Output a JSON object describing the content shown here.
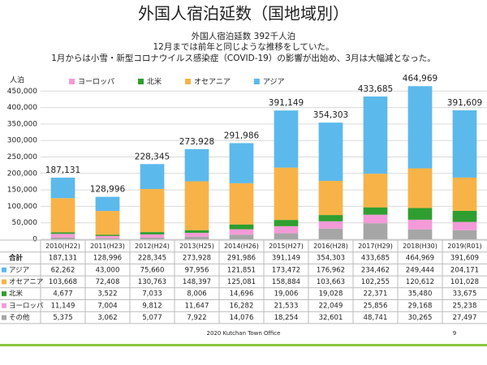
{
  "chart_data": {
    "type": "stacked-bar",
    "title": "外国人宿泊延数（国地域別）",
    "subtitle": [
      "外国人宿泊延数 392千人泊",
      "12月までは前年と同じような推移をしていた。",
      "1月からは小雪・新型コロナウイルス感染症（COVID-19）の影響が出始め、3月は大幅減となった。"
    ],
    "y_label": "人泊",
    "categories": [
      "2010(H22)",
      "2011(H23)",
      "2012(H24)",
      "2013(H25)",
      "2014(H26)",
      "2015(H27)",
      "2016(H28)",
      "2017(H29)",
      "2018(H30)",
      "2019(R01)"
    ],
    "series": [
      {
        "name": "その他",
        "color": "#a6a6a6",
        "in_legend": false,
        "values": [
          5375,
          3062,
          5077,
          7922,
          14076,
          18254,
          32601,
          48741,
          30265,
          27497
        ],
        "value_labels": [
          "5,375",
          "3,062",
          "5,077",
          "7,922",
          "14,076",
          "18,254",
          "32,601",
          "48,741",
          "30,265",
          "27,497"
        ]
      },
      {
        "name": "ヨーロッパ",
        "color": "#f59ad8",
        "in_legend": true,
        "values": [
          11149,
          7004,
          9812,
          11647,
          16282,
          21533,
          22049,
          25856,
          29168,
          25238
        ],
        "value_labels": [
          "11,149",
          "7,004",
          "9,812",
          "11,647",
          "16,282",
          "21,533",
          "22,049",
          "25,856",
          "29,168",
          "25,238"
        ]
      },
      {
        "name": "北米",
        "color": "#2f9e30",
        "in_legend": true,
        "values": [
          4677,
          3522,
          7033,
          8006,
          14696,
          19006,
          19028,
          22371,
          35480,
          33675
        ],
        "value_labels": [
          "4,677",
          "3,522",
          "7,033",
          "8,006",
          "14,696",
          "19,006",
          "19,028",
          "22,371",
          "35,480",
          "33,675"
        ]
      },
      {
        "name": "オセアニア",
        "color": "#f7b347",
        "in_legend": true,
        "values": [
          103668,
          72408,
          130763,
          148397,
          125081,
          158884,
          103663,
          102255,
          120612,
          101028
        ],
        "value_labels": [
          "103,668",
          "72,408",
          "130,763",
          "148,397",
          "125,081",
          "158,884",
          "103,663",
          "102,255",
          "120,612",
          "101,028"
        ]
      },
      {
        "name": "アジア",
        "color": "#5cb9ec",
        "in_legend": true,
        "values": [
          62262,
          43000,
          75660,
          97956,
          121851,
          173472,
          176962,
          234462,
          249444,
          204171
        ],
        "value_labels": [
          "62,262",
          "43,000",
          "75,660",
          "97,956",
          "121,851",
          "173,472",
          "176,962",
          "234,462",
          "249,444",
          "204,171"
        ]
      }
    ],
    "total": {
      "name": "合計",
      "values": [
        187131,
        128996,
        228345,
        273928,
        291986,
        391149,
        354303,
        433685,
        464969,
        391609
      ],
      "value_labels": [
        "187,131",
        "128,996",
        "228,345",
        "273,928",
        "291,986",
        "391,149",
        "354,303",
        "433,685",
        "464,969",
        "391,609"
      ]
    },
    "ylim": [
      0,
      500000
    ],
    "yticks": [
      0,
      {
        "value": 50000,
        "label": "50,000"
      },
      {
        "value": 100000,
        "label": "100,000"
      },
      {
        "value": 150000,
        "label": "150,000"
      },
      {
        "value": 200000,
        "label": "200,000"
      },
      {
        "value": 250000,
        "label": "250,000"
      },
      {
        "value": 300000,
        "label": "300,000"
      },
      {
        "value": 350000,
        "label": "350,000"
      },
      {
        "value": 400000,
        "label": "400,000"
      },
      {
        "value": 450000,
        "label": "450,000"
      }
    ],
    "grid": true,
    "footer": "2020 Kutchan Town Office",
    "page_number": "9"
  }
}
